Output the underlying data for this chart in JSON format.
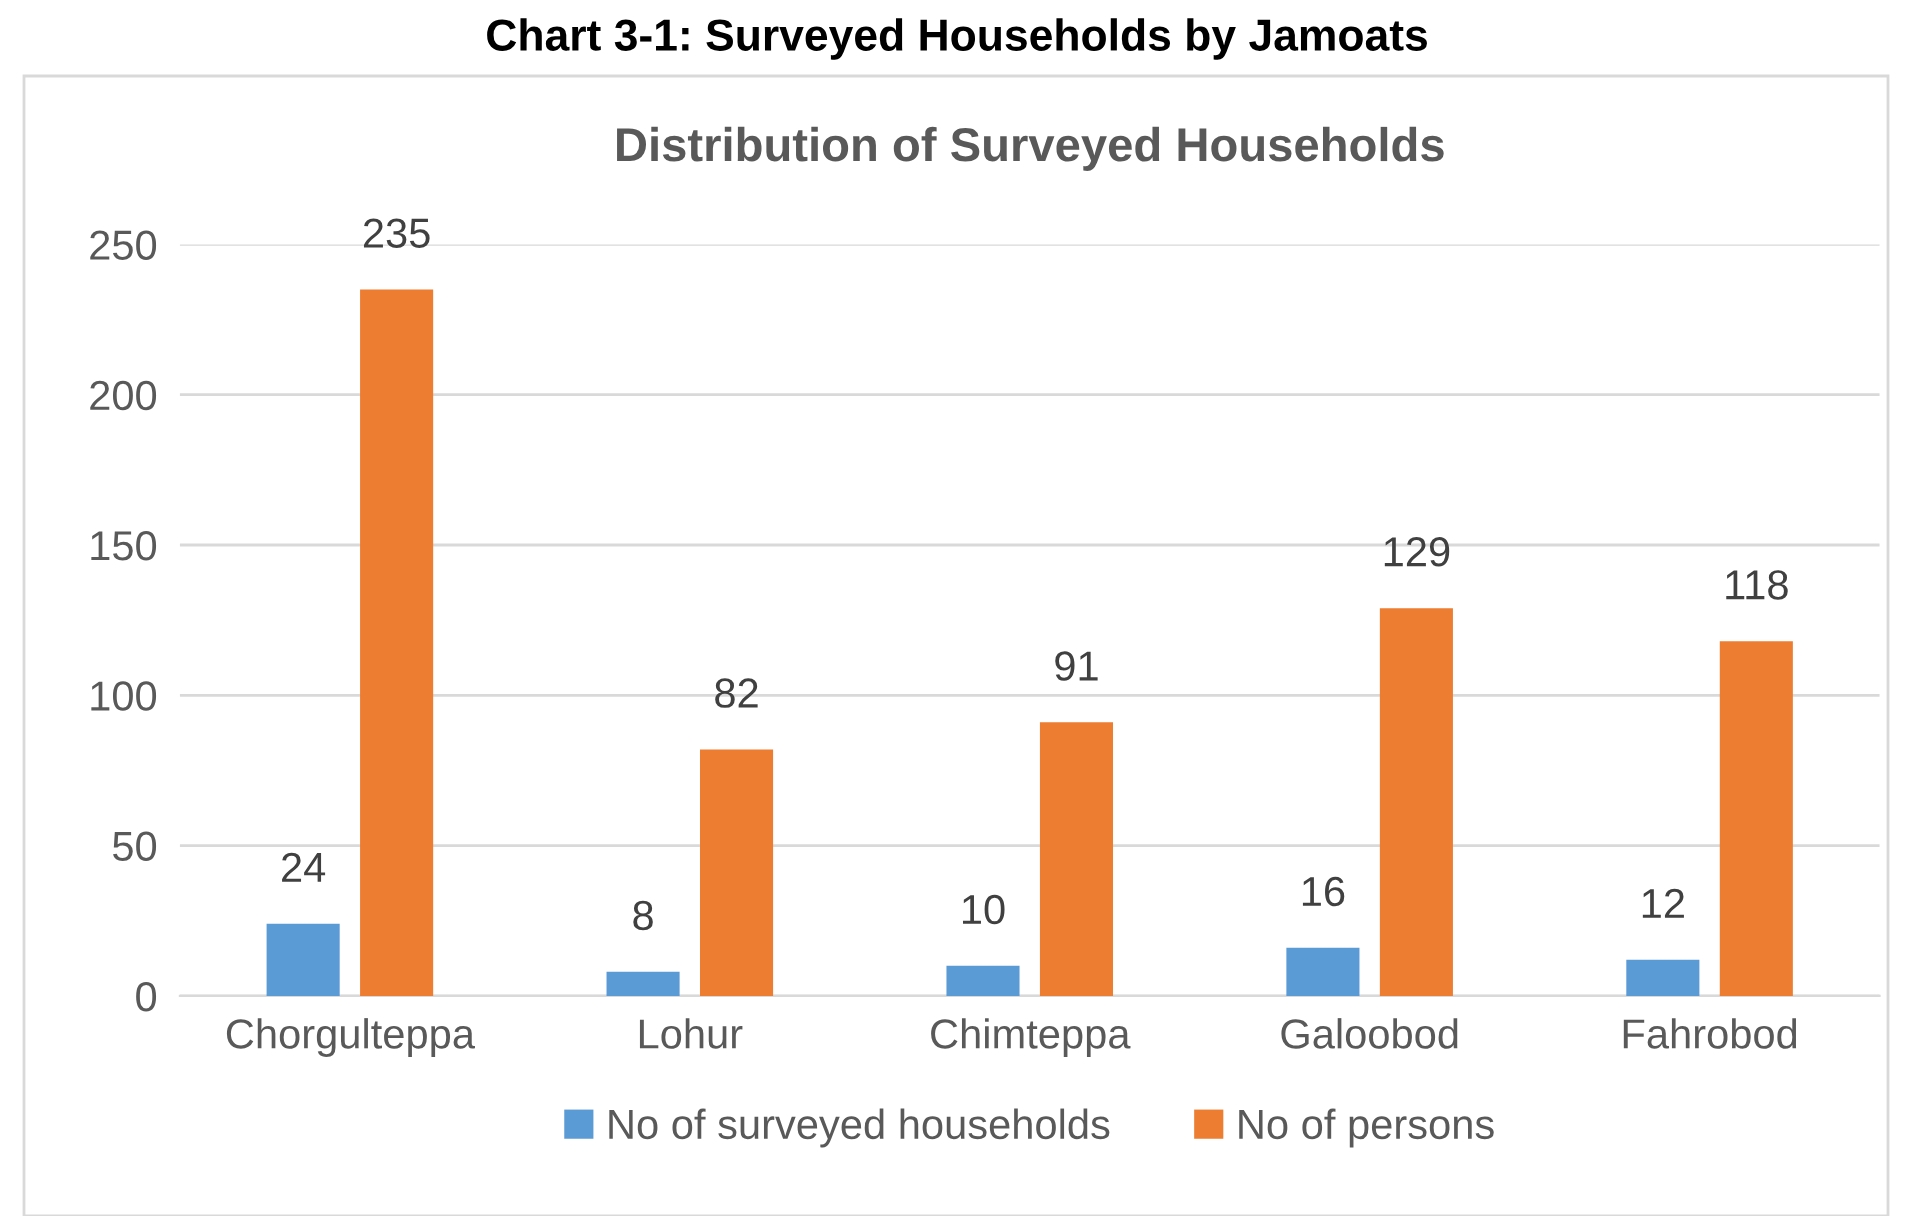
{
  "chart_data": {
    "type": "bar",
    "title": "Chart 3-1: Surveyed Households by Jamoats",
    "subtitle": "Distribution of Surveyed Households",
    "categories": [
      "Chorgulteppa",
      "Lohur",
      "Chimteppa",
      "Galoobod",
      "Fahrobod"
    ],
    "series": [
      {
        "name": "No of surveyed households",
        "color": "#5b9bd5",
        "values": [
          24,
          8,
          10,
          16,
          12
        ]
      },
      {
        "name": "No of persons",
        "color": "#ed7d31",
        "values": [
          235,
          82,
          91,
          129,
          118
        ]
      }
    ],
    "ylim": [
      0,
      250
    ],
    "yticks": [
      0,
      50,
      100,
      150,
      200,
      250
    ],
    "grid": "y",
    "legend": "bottom",
    "data_labels": true
  }
}
